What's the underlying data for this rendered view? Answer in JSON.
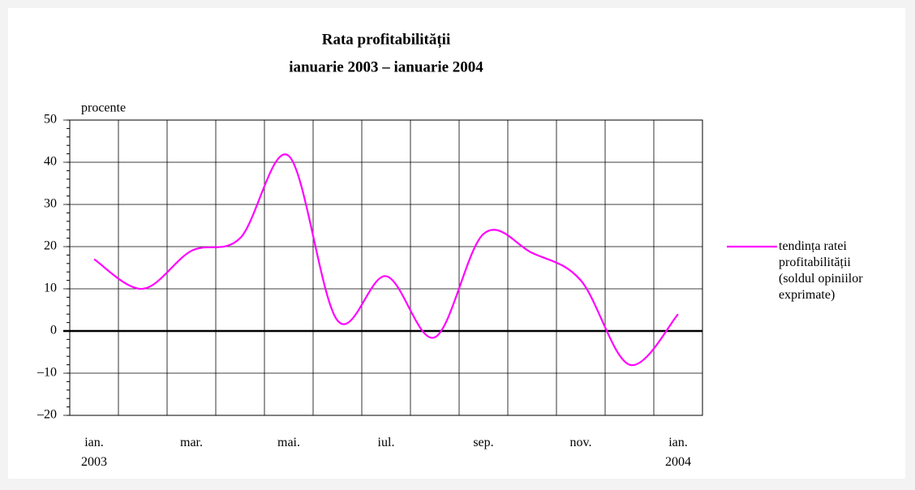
{
  "chart_data": {
    "type": "line",
    "title": "Rata profitabilității",
    "subtitle": "ianuarie 2003 – ianuarie 2004",
    "y_label": "procente",
    "categories": [
      "ian.\n2003",
      null,
      "mar.",
      null,
      "mai.",
      null,
      "iul.",
      null,
      "sep.",
      null,
      "nov.",
      null,
      "ian.\n2004"
    ],
    "series": [
      {
        "name": "tendința ratei\nprofitabilității\n(soldul opiniilor\nexprimate)",
        "color": "#ff00ff",
        "values": [
          17,
          10,
          19,
          22,
          41.5,
          2.5,
          13,
          -1.5,
          23,
          18.5,
          12,
          -8,
          4
        ]
      }
    ],
    "ylim": [
      -20,
      50
    ],
    "yticks": [
      {
        "value": -20,
        "label": "–20"
      },
      {
        "value": -10,
        "label": "–10"
      },
      0,
      10,
      20,
      30,
      40,
      50
    ],
    "grid": true,
    "smooth": true,
    "legend": "right"
  }
}
